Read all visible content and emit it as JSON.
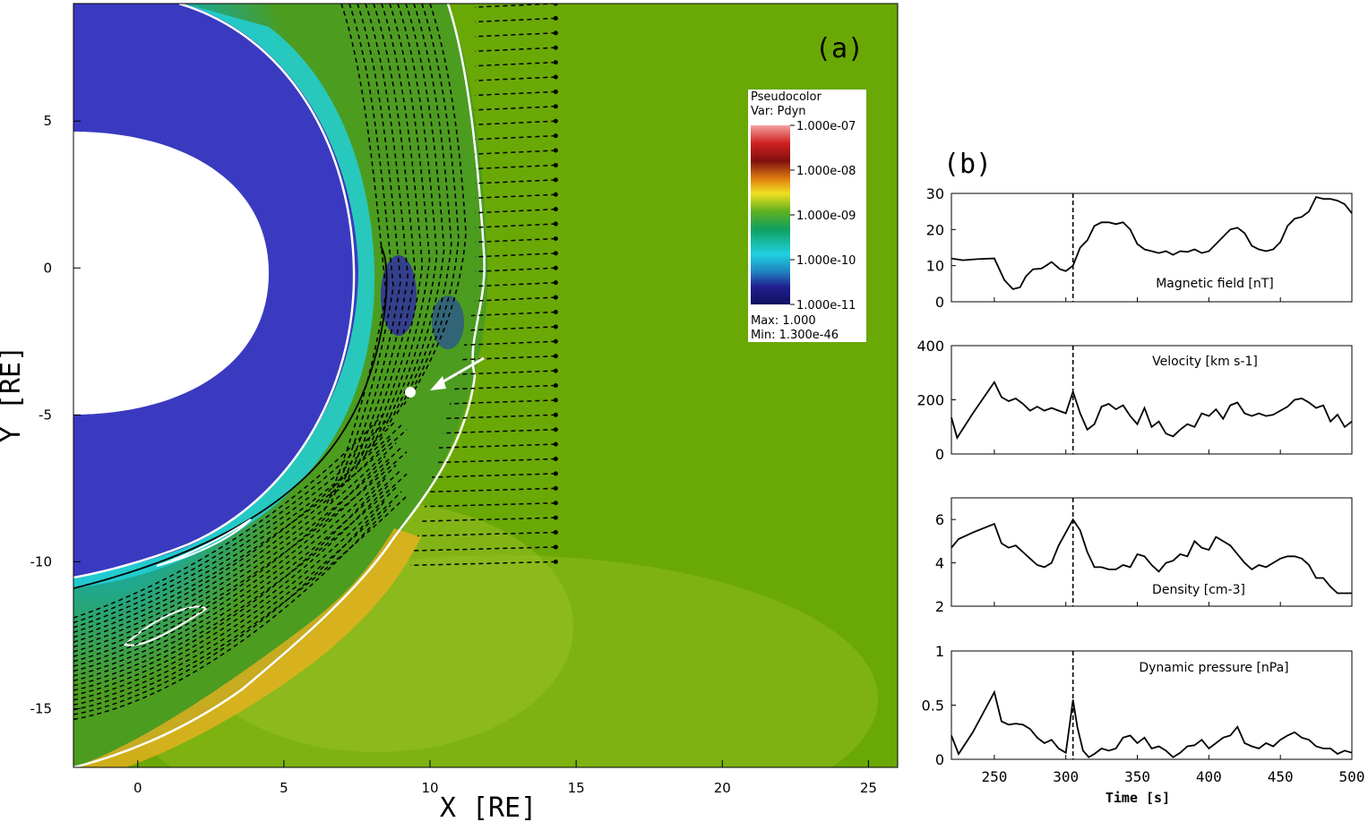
{
  "panel_a": {
    "label": "(a)",
    "xlabel": "X [RE]",
    "ylabel": "Y [RE]",
    "x_ticks": [
      "0",
      "5",
      "10",
      "15",
      "20",
      "25"
    ],
    "y_ticks": [
      "5",
      "0",
      "-5",
      "-10",
      "-15"
    ],
    "legend": {
      "title": "Pseudocolor",
      "var": "Var: Pdyn",
      "levels": [
        "1.000e-07",
        "1.000e-08",
        "1.000e-09",
        "1.000e-10",
        "1.000e-11"
      ],
      "max": "Max:  1.000",
      "min": "Min:  1.300e-46"
    }
  },
  "panel_b": {
    "label": "(b)",
    "xlabel": "Time [s]",
    "x_ticks": [
      "250",
      "300",
      "350",
      "400",
      "450",
      "500"
    ]
  },
  "colors": {
    "bg": "#6aa806",
    "planet": "#3a3ac0",
    "contour_white": "#ffffff",
    "contour_black": "#000000",
    "line": "#000000"
  },
  "chart_data": [
    {
      "type": "heatmap",
      "title": "(a)",
      "variable": "Pdyn",
      "xlabel": "X [RE]",
      "ylabel": "Y [RE]",
      "xlim": [
        -2.2,
        26
      ],
      "ylim": [
        -17,
        9
      ],
      "x_ticks": [
        0,
        5,
        10,
        15,
        20,
        25
      ],
      "y_ticks": [
        5,
        0,
        -5,
        -10,
        -15
      ],
      "colorbar_levels": [
        1e-07,
        1e-08,
        1e-09,
        1e-10,
        1e-11
      ],
      "colorbar_labels": [
        "1.000e-07",
        "1.000e-08",
        "1.000e-09",
        "1.000e-10",
        "1.000e-11"
      ],
      "max": 1.0,
      "min": 1.3e-46,
      "satellite_marker": [
        9.7,
        -4.2
      ],
      "seed_points": {
        "x": 14.3,
        "y_range": [
          -10,
          9
        ],
        "count": 39
      }
    },
    {
      "type": "line",
      "title": "Magnetic field [nT]",
      "xlabel": "Time [s]",
      "xlim": [
        220,
        500
      ],
      "ylim": [
        0,
        30
      ],
      "yticks": [
        0,
        10,
        20,
        30
      ],
      "vline": 305,
      "x": [
        220,
        228,
        238,
        250,
        257,
        263,
        268,
        272,
        277,
        283,
        290,
        296,
        300,
        305,
        310,
        315,
        320,
        325,
        330,
        335,
        340,
        345,
        350,
        355,
        360,
        365,
        370,
        375,
        380,
        385,
        390,
        395,
        400,
        405,
        410,
        415,
        420,
        425,
        430,
        435,
        440,
        445,
        450,
        455,
        460,
        465,
        470,
        475,
        480,
        485,
        490,
        495,
        500
      ],
      "y": [
        12,
        11.5,
        11.8,
        12,
        6,
        3.5,
        4,
        7,
        9,
        9.2,
        11,
        9,
        8.5,
        10,
        15,
        17,
        21,
        22,
        22,
        21.5,
        22,
        20,
        16,
        14.5,
        14,
        13.5,
        14,
        13,
        14,
        13.8,
        14.5,
        13.5,
        14,
        16,
        18,
        20,
        20.5,
        19,
        15.5,
        14.5,
        14,
        14.5,
        16.5,
        21,
        23,
        23.5,
        25,
        29,
        28.5,
        28.5,
        28,
        27,
        24.5
      ]
    },
    {
      "type": "line",
      "title": "Velocity [km s-1]",
      "xlabel": "Time [s]",
      "xlim": [
        220,
        500
      ],
      "ylim": [
        0,
        400
      ],
      "yticks": [
        0,
        200,
        400
      ],
      "vline": 305,
      "x": [
        220,
        224,
        235,
        250,
        255,
        260,
        265,
        270,
        275,
        280,
        285,
        290,
        295,
        300,
        305,
        310,
        315,
        320,
        325,
        330,
        335,
        340,
        345,
        350,
        355,
        360,
        365,
        370,
        375,
        380,
        385,
        390,
        395,
        400,
        405,
        410,
        415,
        420,
        425,
        430,
        435,
        440,
        445,
        450,
        455,
        460,
        465,
        470,
        475,
        480,
        485,
        490,
        495,
        500
      ],
      "y": [
        135,
        60,
        150,
        265,
        210,
        195,
        205,
        185,
        160,
        175,
        160,
        170,
        160,
        150,
        230,
        150,
        90,
        110,
        175,
        185,
        165,
        180,
        140,
        110,
        170,
        100,
        120,
        75,
        65,
        90,
        110,
        100,
        150,
        140,
        165,
        130,
        180,
        190,
        150,
        140,
        150,
        140,
        145,
        160,
        175,
        200,
        205,
        190,
        170,
        180,
        120,
        145,
        100,
        120
      ]
    },
    {
      "type": "line",
      "title": "Density [cm-3]",
      "xlabel": "Time [s]",
      "xlim": [
        220,
        500
      ],
      "ylim": [
        2,
        7
      ],
      "yticks": [
        2,
        4,
        6
      ],
      "vline": 305,
      "x": [
        220,
        225,
        235,
        250,
        255,
        260,
        265,
        270,
        275,
        280,
        285,
        290,
        295,
        300,
        305,
        310,
        315,
        320,
        325,
        330,
        335,
        340,
        345,
        350,
        355,
        360,
        365,
        370,
        375,
        380,
        385,
        390,
        395,
        400,
        405,
        410,
        415,
        420,
        425,
        430,
        435,
        440,
        445,
        450,
        455,
        460,
        465,
        470,
        475,
        480,
        485,
        490,
        495,
        500
      ],
      "y": [
        4.7,
        5.1,
        5.4,
        5.8,
        4.9,
        4.7,
        4.8,
        4.5,
        4.2,
        3.9,
        3.8,
        4.0,
        4.8,
        5.4,
        6.0,
        5.5,
        4.5,
        3.8,
        3.8,
        3.7,
        3.7,
        3.9,
        3.8,
        4.4,
        4.3,
        3.9,
        3.6,
        4.0,
        4.1,
        4.4,
        4.3,
        5.0,
        4.7,
        4.6,
        5.2,
        5.0,
        4.8,
        4.4,
        4.0,
        3.7,
        3.9,
        3.8,
        4.0,
        4.2,
        4.3,
        4.3,
        4.2,
        3.9,
        3.3,
        3.3,
        2.9,
        2.6,
        2.6,
        2.6
      ]
    },
    {
      "type": "line",
      "title": "Dynamic pressure [nPa]",
      "xlabel": "Time [s]",
      "xlim": [
        220,
        500
      ],
      "ylim": [
        0,
        1
      ],
      "yticks": [
        0,
        0.5,
        1
      ],
      "vline": 305,
      "x": [
        220,
        225,
        235,
        250,
        255,
        260,
        265,
        270,
        275,
        280,
        285,
        290,
        295,
        300,
        303,
        305,
        308,
        312,
        316,
        320,
        325,
        330,
        335,
        340,
        345,
        350,
        355,
        360,
        365,
        370,
        375,
        380,
        385,
        390,
        395,
        400,
        405,
        410,
        415,
        420,
        425,
        430,
        435,
        440,
        445,
        450,
        455,
        460,
        465,
        470,
        475,
        480,
        485,
        490,
        495,
        500
      ],
      "y": [
        0.22,
        0.05,
        0.25,
        0.62,
        0.35,
        0.32,
        0.33,
        0.32,
        0.28,
        0.2,
        0.15,
        0.18,
        0.1,
        0.06,
        0.35,
        0.55,
        0.3,
        0.08,
        0.02,
        0.05,
        0.1,
        0.08,
        0.1,
        0.2,
        0.22,
        0.15,
        0.2,
        0.1,
        0.12,
        0.08,
        0.02,
        0.06,
        0.12,
        0.13,
        0.18,
        0.1,
        0.15,
        0.2,
        0.22,
        0.3,
        0.15,
        0.12,
        0.1,
        0.15,
        0.12,
        0.18,
        0.22,
        0.25,
        0.2,
        0.18,
        0.12,
        0.1,
        0.1,
        0.05,
        0.08,
        0.06
      ]
    }
  ]
}
